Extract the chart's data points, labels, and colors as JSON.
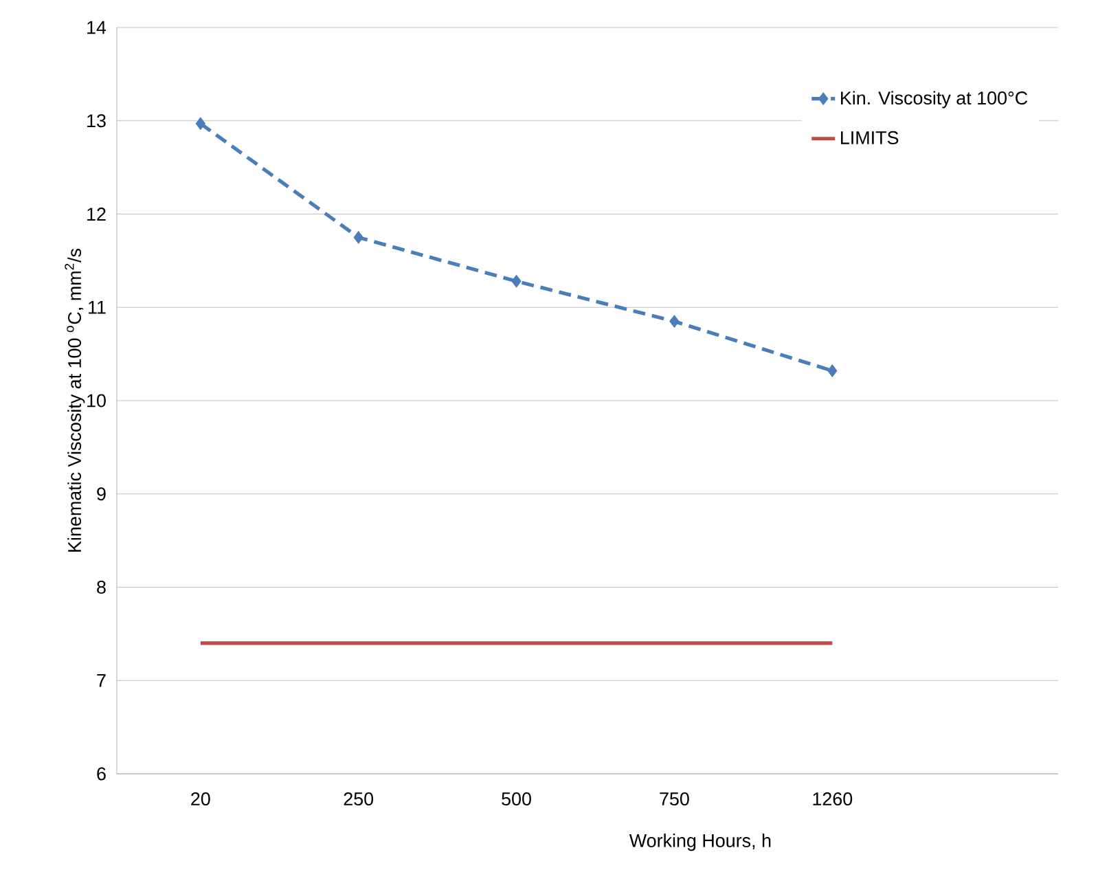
{
  "chart_data": {
    "type": "line",
    "xlabel": "Working Hours, h",
    "ylabel": "Kinematic Viscosity at 100 $^{o}$C, mm$^{2}$/s",
    "categories": [
      "20",
      "250",
      "500",
      "750",
      "1260"
    ],
    "series": [
      {
        "name": "Kin. Viscosity at 100°C",
        "color": "#4a7ebb",
        "values": [
          12.97,
          11.75,
          11.28,
          10.85,
          10.32
        ],
        "line_style": "dashed",
        "marker": "diamond"
      },
      {
        "name": "LIMITS",
        "color": "#be4b48",
        "values": [
          7.4,
          7.4,
          7.4,
          7.4,
          7.4
        ],
        "line_style": "solid",
        "marker": "none"
      }
    ],
    "ylim": [
      6,
      14
    ],
    "yticks": [
      6,
      7,
      8,
      9,
      10,
      11,
      12,
      13,
      14
    ],
    "grid": "y",
    "legend": "top right"
  }
}
